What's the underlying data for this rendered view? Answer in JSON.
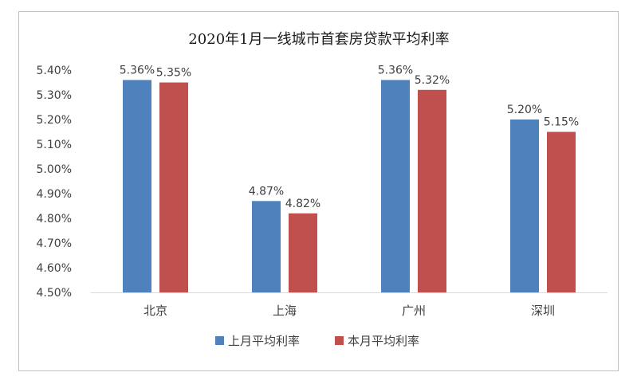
{
  "chart_data": {
    "type": "bar",
    "title": "2020年1月一线城市首套房贷款平均利率",
    "categories": [
      "北京",
      "上海",
      "广州",
      "深圳"
    ],
    "series": [
      {
        "name": "上月平均利率",
        "color": "#4f81bd",
        "values": [
          5.36,
          4.87,
          5.36,
          5.2
        ],
        "labels": [
          "5.36%",
          "4.87%",
          "5.36%",
          "5.20%"
        ]
      },
      {
        "name": "本月平均利率",
        "color": "#c0504d",
        "values": [
          5.35,
          4.82,
          5.32,
          5.15
        ],
        "labels": [
          "5.35%",
          "4.82%",
          "5.32%",
          "5.15%"
        ]
      }
    ],
    "ylim": [
      4.5,
      5.4
    ],
    "yticks": [
      {
        "value": 4.5,
        "label": "4.50%"
      },
      {
        "value": 4.6,
        "label": "4.60%"
      },
      {
        "value": 4.7,
        "label": "4.70%"
      },
      {
        "value": 4.8,
        "label": "4.80%"
      },
      {
        "value": 4.9,
        "label": "4.90%"
      },
      {
        "value": 5.0,
        "label": "5.00%"
      },
      {
        "value": 5.1,
        "label": "5.10%"
      },
      {
        "value": 5.2,
        "label": "5.20%"
      },
      {
        "value": 5.3,
        "label": "5.30%"
      },
      {
        "value": 5.4,
        "label": "5.40%"
      }
    ],
    "grid": false,
    "legend_position": "bottom",
    "axis_color": "#d9d9d9"
  }
}
